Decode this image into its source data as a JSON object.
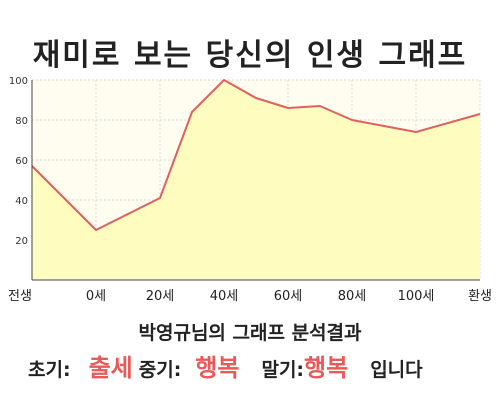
{
  "title": "재미로 보는 당신의 인생 그래프",
  "subtitle": "박영규님의 그래프 분석결과",
  "result": {
    "early_label": "초기:",
    "early_value": "출세",
    "mid_label": "중기:",
    "mid_value": "행복",
    "late_label": "말기:",
    "late_value": "행복",
    "suffix": "입니다"
  },
  "colors": {
    "line": "#e06060",
    "fill": "#fffcc0",
    "plot_bg": "#fffdf0",
    "highlight": "#e85a5a"
  },
  "chart_data": {
    "type": "area",
    "title": "재미로 보는 당신의 인생 그래프",
    "xlabel": "",
    "ylabel": "",
    "x_ticks": [
      "전생",
      "0세",
      "20세",
      "40세",
      "60세",
      "80세",
      "100세",
      "환생"
    ],
    "y_ticks": [
      20,
      40,
      60,
      80,
      100
    ],
    "ylim": [
      0,
      100
    ],
    "grid": true,
    "points": [
      {
        "x": "전생",
        "y": 57
      },
      {
        "x": "0세",
        "y": 25
      },
      {
        "x": "20세",
        "y": 41
      },
      {
        "x": "30세",
        "y": 84
      },
      {
        "x": "40세",
        "y": 100
      },
      {
        "x": "50세",
        "y": 91
      },
      {
        "x": "60세",
        "y": 86
      },
      {
        "x": "70세",
        "y": 87
      },
      {
        "x": "80세",
        "y": 80
      },
      {
        "x": "100세",
        "y": 74
      },
      {
        "x": "환생",
        "y": 83
      }
    ]
  }
}
